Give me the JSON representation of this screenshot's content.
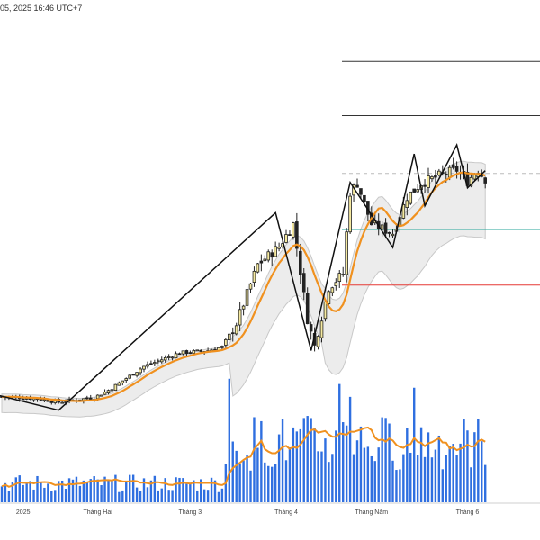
{
  "header": {
    "timestamp": "05, 2025 16:46 UTC+7"
  },
  "chart_data": {
    "type": "candlestick",
    "title": "",
    "price_range": [
      0,
      100
    ],
    "x_range": [
      0,
      143
    ],
    "x_tick_labels": [
      {
        "label": "2025",
        "index": 6
      },
      {
        "label": "Tháng Hai",
        "index": 27
      },
      {
        "label": "Tháng 3",
        "index": 53
      },
      {
        "label": "Tháng 4",
        "index": 80
      },
      {
        "label": "Tháng Năm",
        "index": 104
      },
      {
        "label": "Tháng 6",
        "index": 131
      }
    ],
    "horizontal_levels": [
      {
        "value": 90.0,
        "color": "#333333",
        "style": "solid"
      },
      {
        "value": 78.0,
        "color": "#333333",
        "style": "solid"
      },
      {
        "value": 65.2,
        "color": "#bbbbbb",
        "style": "dashed"
      },
      {
        "value": 52.8,
        "color": "#26a69a",
        "style": "solid"
      },
      {
        "value": 40.5,
        "color": "#e53935",
        "style": "solid"
      }
    ],
    "candle_anchors": [
      {
        "i": 0,
        "c": 15.8
      },
      {
        "i": 10,
        "c": 15.4
      },
      {
        "i": 16,
        "c": 14.6
      },
      {
        "i": 20,
        "c": 15.0
      },
      {
        "i": 26,
        "c": 15.6
      },
      {
        "i": 30,
        "c": 17.2
      },
      {
        "i": 40,
        "c": 22.5
      },
      {
        "i": 50,
        "c": 25.5
      },
      {
        "i": 58,
        "c": 26.0
      },
      {
        "i": 62,
        "c": 26.8
      },
      {
        "i": 66,
        "c": 32.0
      },
      {
        "i": 72,
        "c": 45.0
      },
      {
        "i": 78,
        "c": 49.0
      },
      {
        "i": 82,
        "c": 54.0
      },
      {
        "i": 86,
        "c": 33.0
      },
      {
        "i": 88,
        "c": 27.0
      },
      {
        "i": 92,
        "c": 40.0
      },
      {
        "i": 96,
        "c": 43.0
      },
      {
        "i": 98,
        "c": 61.0
      },
      {
        "i": 100,
        "c": 63.0
      },
      {
        "i": 104,
        "c": 54.0
      },
      {
        "i": 110,
        "c": 52.0
      },
      {
        "i": 114,
        "c": 60.0
      },
      {
        "i": 118,
        "c": 63.0
      },
      {
        "i": 124,
        "c": 65.0
      },
      {
        "i": 128,
        "c": 66.0
      },
      {
        "i": 131,
        "c": 63.5
      },
      {
        "i": 134,
        "c": 66.0
      },
      {
        "i": 136,
        "c": 64.0
      }
    ],
    "zigzag": [
      {
        "i": -3,
        "v": 16.5
      },
      {
        "i": 16,
        "v": 12.8
      },
      {
        "i": 77,
        "v": 56.5
      },
      {
        "i": 87,
        "v": 26.0
      },
      {
        "i": 98,
        "v": 63.2
      },
      {
        "i": 110,
        "v": 48.8
      },
      {
        "i": 116,
        "v": 69.5
      },
      {
        "i": 119,
        "v": 58.0
      },
      {
        "i": 128,
        "v": 71.5
      },
      {
        "i": 131,
        "v": 62.0
      },
      {
        "i": 136,
        "v": 65.8
      }
    ],
    "volume_max": 100,
    "volume_ma_color": "#f0911f",
    "volume_bar_color": "#2f6fe0",
    "series": [
      {
        "name": "",
        "kind": "price_ma",
        "color": "#f0911f"
      },
      {
        "name": "",
        "kind": "band",
        "color": "#d8d8d8"
      }
    ]
  }
}
